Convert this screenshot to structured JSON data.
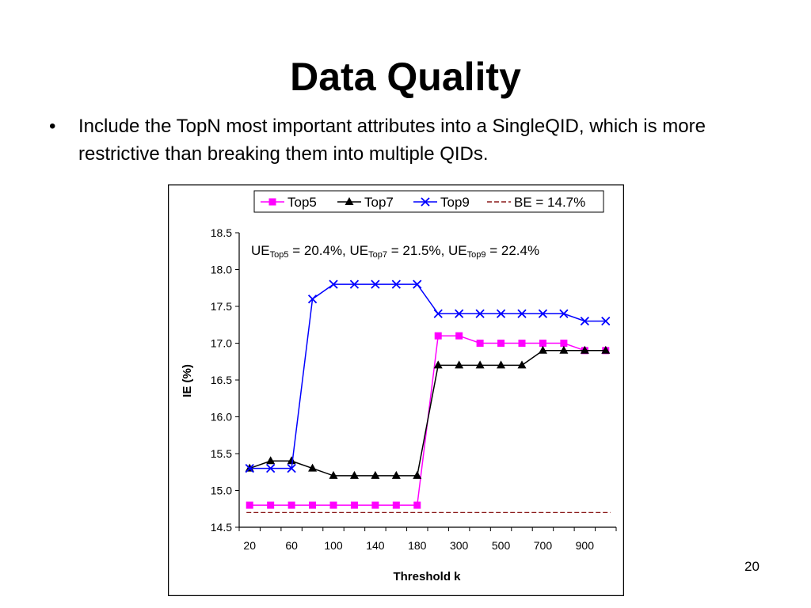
{
  "slide": {
    "title": "Data Quality",
    "bullet": "Include the TopN most important attributes into a SingleQID, which is more restrictive than breaking them into multiple QIDs.",
    "page_number": "20"
  },
  "chart_data": {
    "type": "line",
    "title": "",
    "xlabel": "Threshold k",
    "ylabel": "IE (%)",
    "ylim": [
      14.5,
      18.5
    ],
    "yticks": [
      "14.5",
      "15.0",
      "15.5",
      "16.0",
      "16.5",
      "17.0",
      "17.5",
      "18.0",
      "18.5"
    ],
    "x": [
      20,
      40,
      60,
      80,
      100,
      120,
      140,
      160,
      180,
      200,
      300,
      400,
      500,
      600,
      700,
      800,
      900,
      1000
    ],
    "x_tick_labels": [
      "20",
      "60",
      "100",
      "140",
      "180",
      "300",
      "500",
      "700",
      "900"
    ],
    "grid": false,
    "legend_position": "top",
    "series": [
      {
        "name": "Top5",
        "color": "#ff00ff",
        "marker": "square",
        "values": [
          14.8,
          14.8,
          14.8,
          14.8,
          14.8,
          14.8,
          14.8,
          14.8,
          14.8,
          17.1,
          17.1,
          17.0,
          17.0,
          17.0,
          17.0,
          17.0,
          16.9,
          16.9
        ]
      },
      {
        "name": "Top7",
        "color": "#000000",
        "marker": "triangle",
        "values": [
          15.3,
          15.4,
          15.4,
          15.3,
          15.2,
          15.2,
          15.2,
          15.2,
          15.2,
          16.7,
          16.7,
          16.7,
          16.7,
          16.7,
          16.9,
          16.9,
          16.9,
          16.9
        ]
      },
      {
        "name": "Top9",
        "color": "#0000ff",
        "marker": "x",
        "values": [
          15.3,
          15.3,
          15.3,
          17.6,
          17.8,
          17.8,
          17.8,
          17.8,
          17.8,
          17.4,
          17.4,
          17.4,
          17.4,
          17.4,
          17.4,
          17.4,
          17.3,
          17.3
        ]
      }
    ],
    "reference_line": {
      "label": "BE = 14.7%",
      "value": 14.7,
      "color": "#8b1a1a",
      "style": "dashed"
    },
    "annotation": {
      "parts": [
        {
          "text": "UE",
          "sub": "Top5",
          "after": " = 20.4%, "
        },
        {
          "text": "UE",
          "sub": "Top7",
          "after": " = 21.5%, "
        },
        {
          "text": "UE",
          "sub": "Top9",
          "after": " = 22.4%"
        }
      ]
    }
  }
}
